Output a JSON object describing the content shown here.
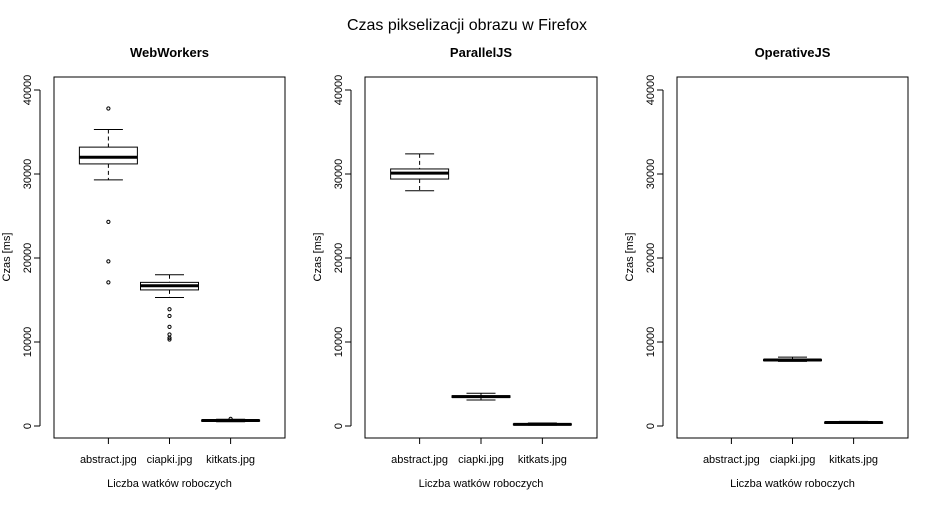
{
  "chart_data": {
    "type": "boxplot",
    "title": "Czas pikselizacji obrazu w Firefox",
    "ylim": [
      0,
      40000
    ],
    "yticks": [
      0,
      10000,
      20000,
      30000,
      40000
    ],
    "panels": [
      {
        "title": "WebWorkers",
        "xlabel": "Liczba watków roboczych",
        "ylabel": "Czas [ms]",
        "categories": [
          "abstract.jpg",
          "ciapki.jpg",
          "kitkats.jpg"
        ],
        "boxes": [
          {
            "whisker_low": 29300,
            "q1": 31200,
            "median": 32000,
            "q3": 33200,
            "whisker_high": 35300,
            "outliers": [
              37800,
              24300,
              19600,
              17100
            ]
          },
          {
            "whisker_low": 15300,
            "q1": 16200,
            "median": 16700,
            "q3": 17100,
            "whisker_high": 18000,
            "outliers": [
              13900,
              13100,
              11800,
              10900,
              10500,
              10300
            ]
          },
          {
            "whisker_low": 500,
            "q1": 600,
            "median": 650,
            "q3": 700,
            "whisker_high": 800,
            "outliers": [
              850
            ]
          }
        ]
      },
      {
        "title": "ParallelJS",
        "xlabel": "Liczba watków roboczych",
        "ylabel": "Czas [ms]",
        "categories": [
          "abstract.jpg",
          "ciapki.jpg",
          "kitkats.jpg"
        ],
        "boxes": [
          {
            "whisker_low": 28000,
            "q1": 29400,
            "median": 30100,
            "q3": 30600,
            "whisker_high": 32400,
            "outliers": []
          },
          {
            "whisker_low": 3100,
            "q1": 3400,
            "median": 3500,
            "q3": 3600,
            "whisker_high": 3900,
            "outliers": []
          },
          {
            "whisker_low": 100,
            "q1": 150,
            "median": 200,
            "q3": 250,
            "whisker_high": 350,
            "outliers": []
          }
        ]
      },
      {
        "title": "OperativeJS",
        "xlabel": "Liczba watków roboczych",
        "ylabel": "Czas [ms]",
        "categories": [
          "abstract.jpg",
          "ciapki.jpg",
          "kitkats.jpg"
        ],
        "boxes": [
          null,
          {
            "whisker_low": 7700,
            "q1": 7800,
            "median": 7850,
            "q3": 7900,
            "whisker_high": 8200,
            "outliers": []
          },
          {
            "whisker_low": 300,
            "q1": 380,
            "median": 420,
            "q3": 450,
            "whisker_high": 550,
            "outliers": []
          }
        ]
      }
    ]
  }
}
